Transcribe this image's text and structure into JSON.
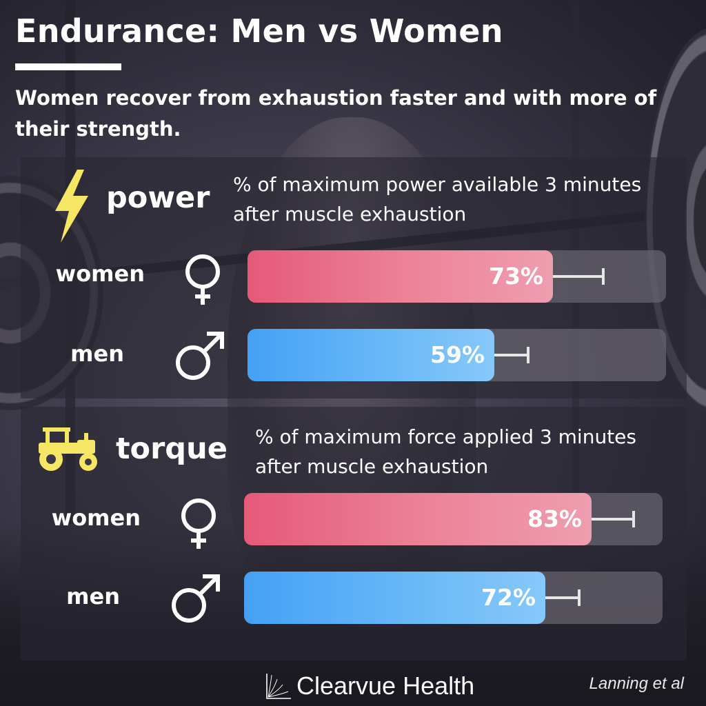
{
  "header": {
    "title": "Endurance: Men vs Women",
    "subtitle": "Women recover from exhaustion faster and with more of their strength."
  },
  "colors": {
    "women": "#e55a78",
    "men": "#45a0f5",
    "icon_yellow": "#f5e663",
    "track": "#6a6770"
  },
  "icons": {
    "power": "lightning-bolt-icon",
    "torque": "tractor-icon",
    "women": "female-symbol-icon",
    "men": "male-symbol-icon",
    "brand": "clearvue-logo-icon"
  },
  "chart_data": [
    {
      "type": "bar",
      "orientation": "horizontal",
      "title": "power",
      "subtitle": "% of maximum power available 3 minutes after muscle exhaustion",
      "categories": [
        "women",
        "men"
      ],
      "values": [
        73,
        59
      ],
      "value_labels": [
        "73%",
        "59%"
      ],
      "error_upper": [
        85,
        67
      ],
      "xlim": [
        0,
        100
      ],
      "grid": false
    },
    {
      "type": "bar",
      "orientation": "horizontal",
      "title": "torque",
      "subtitle": "% of maximum force applied 3 minutes after muscle exhaustion",
      "categories": [
        "women",
        "men"
      ],
      "values": [
        83,
        72
      ],
      "value_labels": [
        "83%",
        "72%"
      ],
      "error_upper": [
        93,
        80
      ],
      "xlim": [
        0,
        100
      ],
      "grid": false
    }
  ],
  "footer": {
    "brand": "Clearvue Health",
    "source": "Lanning et al"
  }
}
